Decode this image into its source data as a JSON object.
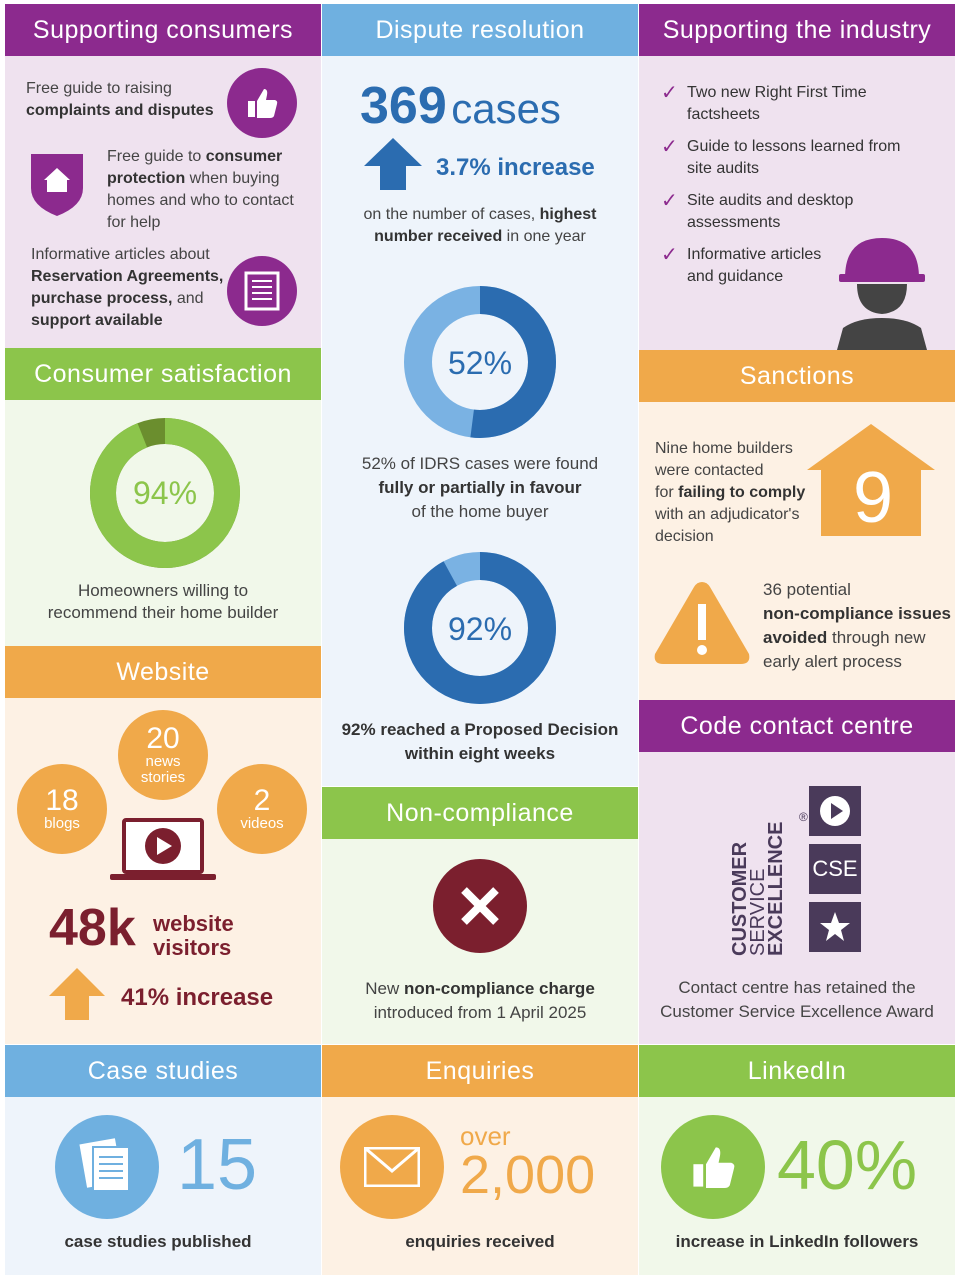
{
  "consumers": {
    "header": "Supporting consumers",
    "item1_plain": "Free guide to raising",
    "item1_bold": "complaints and disputes",
    "item2_a": "Free guide to ",
    "item2_b": "consumer",
    "item2_c": "protection",
    "item2_d": " when buying homes and who to contact for help",
    "item3_plain": "Informative articles about",
    "item3_bold1": "Reservation Agreements,",
    "item3_bold2": "purchase process,",
    "item3_plain2": " and",
    "item3_bold3": "support available"
  },
  "dispute": {
    "header": "Dispute resolution",
    "cases_num": "369",
    "cases_word": "cases",
    "increase": "3.7% increase",
    "note_a": "on the number of cases, ",
    "note_b": "highest",
    "note_c": "number received",
    "note_d": " in one year",
    "donut1_label": "52%",
    "donut1_value": 52,
    "donut1_text_a": "52% of IDRS cases were found",
    "donut1_text_b": "fully or partially in favour",
    "donut1_text_c": "of the home buyer",
    "donut2_label": "92%",
    "donut2_value": 92,
    "donut2_text_a": "92% reached a Proposed Decision",
    "donut2_text_b": "within eight weeks"
  },
  "industry": {
    "header": "Supporting the industry",
    "items": [
      "Two new Right First Time factsheets",
      "Guide to lessons learned from site audits",
      "Site audits and desktop assessments",
      "Informative articles and guidance"
    ]
  },
  "satisfaction": {
    "header": "Consumer satisfaction",
    "label": "94%",
    "value": 94,
    "text_a": "Homeowners willing to",
    "text_b": "recommend their home builder"
  },
  "sanctions": {
    "header": "Sanctions",
    "number": "9",
    "text1_a": "Nine home builders",
    "text1_b": "were contacted",
    "text1_c": "for ",
    "text1_d": "failing to comply",
    "text1_e": "with an adjudicator's",
    "text1_f": "decision",
    "text2_a": "36 potential",
    "text2_b": "non-compliance issues",
    "text2_c": "avoided",
    "text2_d": " through new",
    "text2_e": "early alert process"
  },
  "website": {
    "header": "Website",
    "news_num": "20",
    "news_label_a": "news",
    "news_label_b": "stories",
    "blogs_num": "18",
    "blogs_label": "blogs",
    "videos_num": "2",
    "videos_label": "videos",
    "visitors_num": "48k",
    "visitors_a": "website",
    "visitors_b": "visitors",
    "increase": "41% increase"
  },
  "noncompliance": {
    "header": "Non-compliance",
    "text_a": "New ",
    "text_b": "non-compliance charge",
    "text_c": "introduced from 1 April 2025"
  },
  "code": {
    "header": "Code contact centre",
    "badge_line1": "CUSTOMER",
    "badge_line2": "SERVICE",
    "badge_line3": "EXCELLENCE",
    "badge_reg": "®",
    "badge_cse": "CSE",
    "text_a": "Contact centre has retained the",
    "text_b": "Customer Service Excellence Award"
  },
  "case_studies": {
    "header": "Case studies",
    "number": "15",
    "text": "case studies published"
  },
  "enquiries": {
    "header": "Enquiries",
    "over": "over",
    "number": "2,000",
    "text": "enquiries received"
  },
  "linkedin": {
    "header": "LinkedIn",
    "number": "40%",
    "text": "increase in LinkedIn followers"
  },
  "colors": {
    "purple": "#8c2a8e",
    "blue": "#6fb0e0",
    "dark_blue": "#2b6cb0",
    "green": "#8cc54b",
    "orange": "#f0a94a",
    "maroon": "#7b1f2e"
  }
}
